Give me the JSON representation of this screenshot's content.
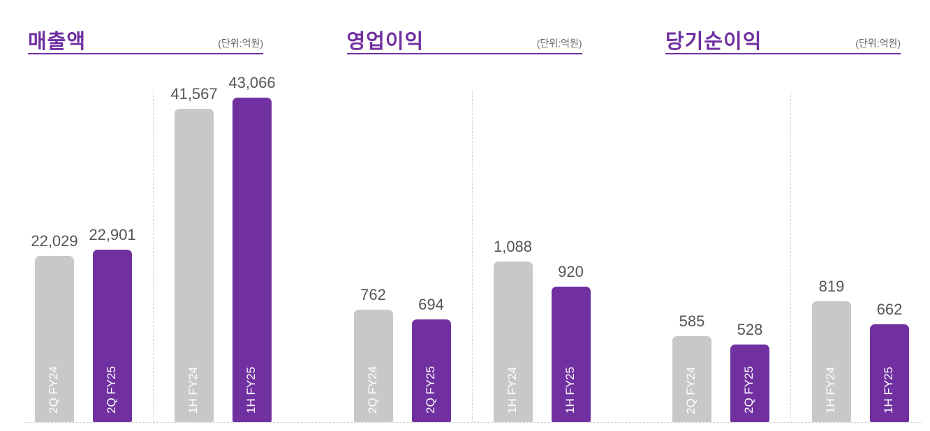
{
  "chart_data": [
    {
      "type": "bar",
      "title": "매출액",
      "unit": "(단위:억원)",
      "ylim": [
        0,
        44000
      ],
      "categories": [
        "2Q  FY24",
        "2Q  FY25",
        "1H  FY24",
        "1H  FY25"
      ],
      "values": [
        22029,
        22901,
        41567,
        43066
      ],
      "labels": [
        "22,029",
        "22,901",
        "41,567",
        "43,066"
      ]
    },
    {
      "type": "bar",
      "title": "영업이익",
      "unit": "(단위:억원)",
      "ylim": [
        0,
        2250
      ],
      "categories": [
        "2Q  FY24",
        "2Q  FY25",
        "1H  FY24",
        "1H  FY25"
      ],
      "values": [
        762,
        694,
        1088,
        920
      ],
      "labels": [
        "762",
        "694",
        "1,088",
        "920"
      ]
    },
    {
      "type": "bar",
      "title": "당기순이익",
      "unit": "(단위:억원)",
      "ylim": [
        0,
        2250
      ],
      "categories": [
        "2Q  FY24",
        "2Q  FY25",
        "1H  FY24",
        "1H  FY25"
      ],
      "values": [
        585,
        528,
        819,
        662
      ],
      "labels": [
        "585",
        "528",
        "819",
        "662"
      ]
    }
  ],
  "colors": {
    "FY24": "#c8c8c8",
    "FY25": "#7030a0",
    "title": "#7030a0"
  }
}
